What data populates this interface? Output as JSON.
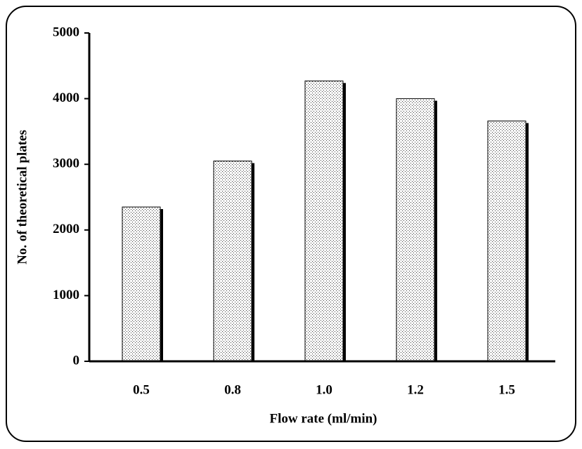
{
  "chart_data": {
    "type": "bar",
    "x_label": "Flow rate (ml/min)",
    "y_label": "No. of theoretical plates",
    "categories": [
      "0.5",
      "0.8",
      "1.0",
      "1.2",
      "1.5"
    ],
    "values": [
      2350,
      3050,
      4270,
      4000,
      3660
    ],
    "color": "#000000",
    "ylim": [
      0,
      5000
    ],
    "yticks": [
      0,
      1000,
      2000,
      3000,
      4000,
      5000
    ],
    "grid": false
  }
}
